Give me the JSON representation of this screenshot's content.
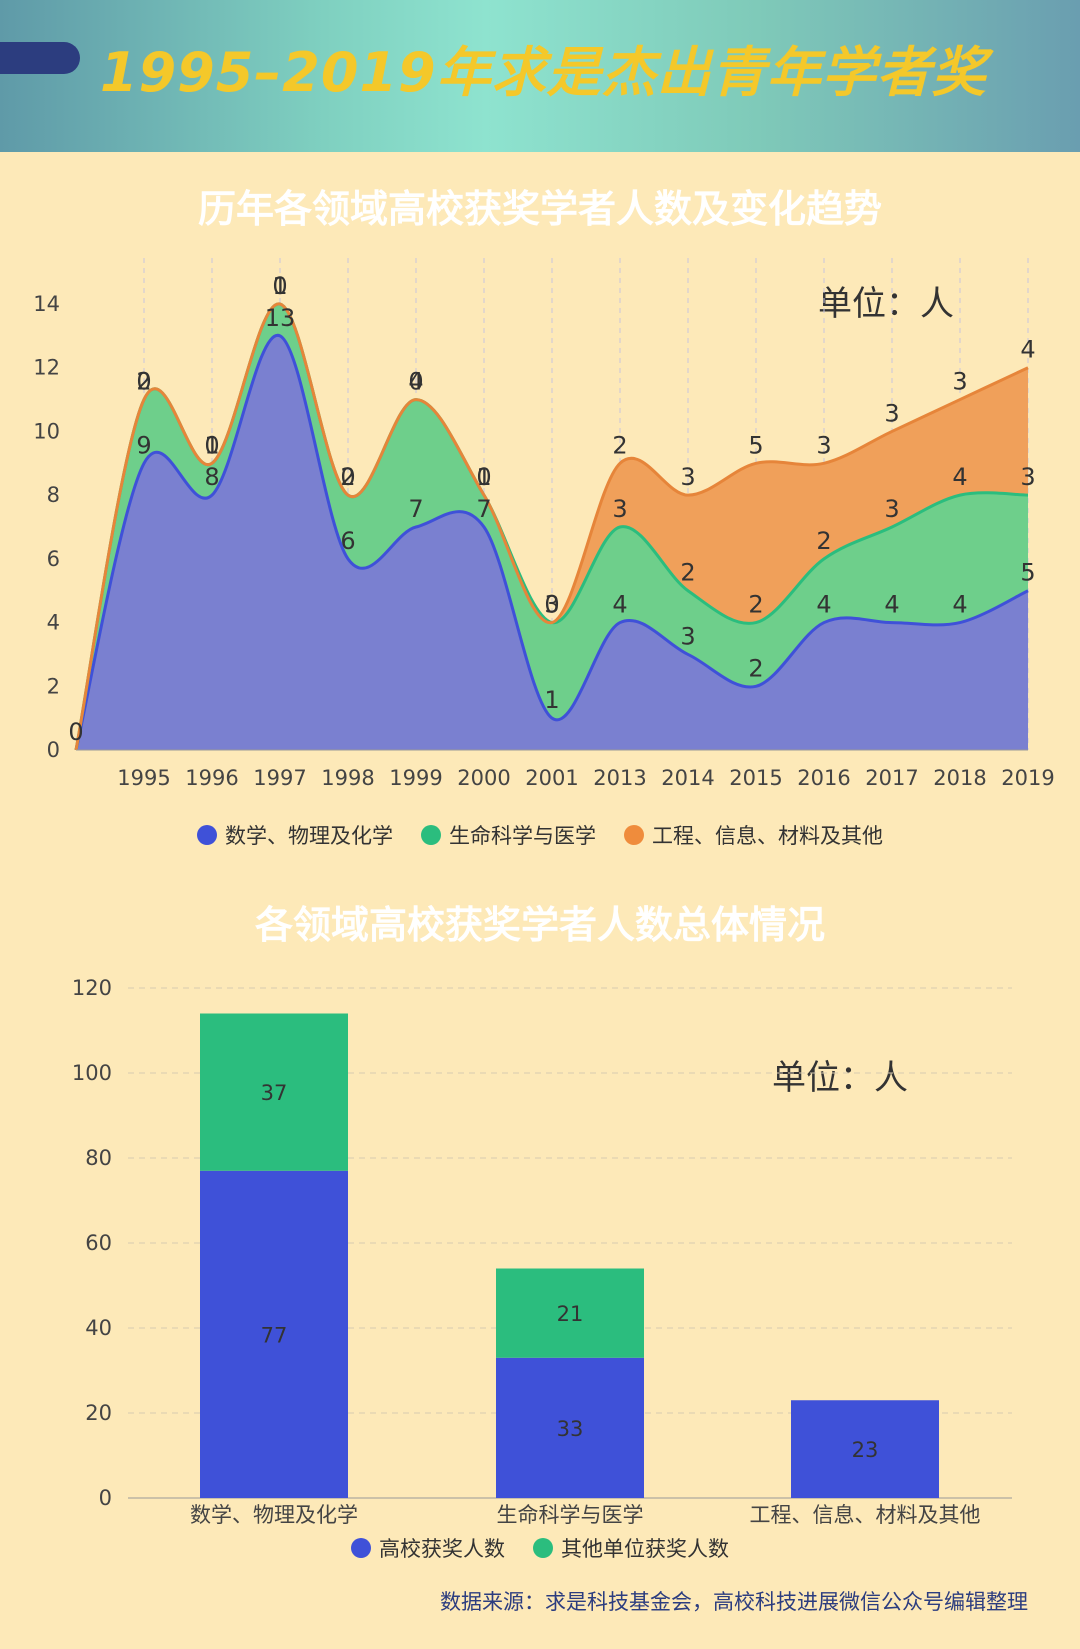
{
  "header": {
    "title": "1995–2019年求是杰出青年学者奖"
  },
  "footer": {
    "source": "数据来源：求是科技基金会，高校科技进展微信公众号编辑整理"
  },
  "colors": {
    "math": "#3f51d8",
    "life": "#2bbd7e",
    "eng": "#ef8c3c",
    "banner_title": "#f4c82a",
    "background": "#fde9b8"
  },
  "chart_data": [
    {
      "type": "area",
      "stacked": true,
      "title": "历年各领域高校获奖学者人数及变化趋势",
      "unit": "单位：人",
      "x": [
        "",
        "1995",
        "1996",
        "1997",
        "1998",
        "1999",
        "2000",
        "2001",
        "2013",
        "2014",
        "2015",
        "2016",
        "2017",
        "2018",
        "2019"
      ],
      "series": [
        {
          "name": "数学、物理及化学",
          "values": [
            0,
            9,
            8,
            13,
            6,
            7,
            7,
            1,
            4,
            3,
            2,
            4,
            4,
            4,
            5
          ]
        },
        {
          "name": "生命科学与医学",
          "values": [
            0,
            2,
            1,
            1,
            2,
            4,
            1,
            3,
            3,
            2,
            2,
            2,
            3,
            4,
            3
          ]
        },
        {
          "name": "工程、信息、材料及其他",
          "values": [
            0,
            0,
            0,
            0,
            0,
            0,
            0,
            0,
            2,
            3,
            5,
            3,
            3,
            3,
            4
          ]
        }
      ],
      "yticks": [
        0,
        2,
        4,
        6,
        8,
        10,
        12,
        14
      ],
      "ylim": [
        0,
        14
      ],
      "legend": "bottom",
      "grid": "vertical-dashed"
    },
    {
      "type": "bar",
      "stacked": true,
      "title": "各领域高校获奖学者人数总体情况",
      "unit": "单位：人",
      "categories": [
        "数学、物理及化学",
        "生命科学与医学",
        "工程、信息、材料及其他"
      ],
      "series": [
        {
          "name": "高校获奖人数",
          "values": [
            77,
            33,
            23
          ]
        },
        {
          "name": "其他单位获奖人数",
          "values": [
            37,
            21,
            0
          ]
        }
      ],
      "yticks": [
        0,
        20,
        40,
        60,
        80,
        100,
        120
      ],
      "ylim": [
        0,
        120
      ],
      "legend": "bottom",
      "grid": "horizontal-dashed"
    }
  ]
}
